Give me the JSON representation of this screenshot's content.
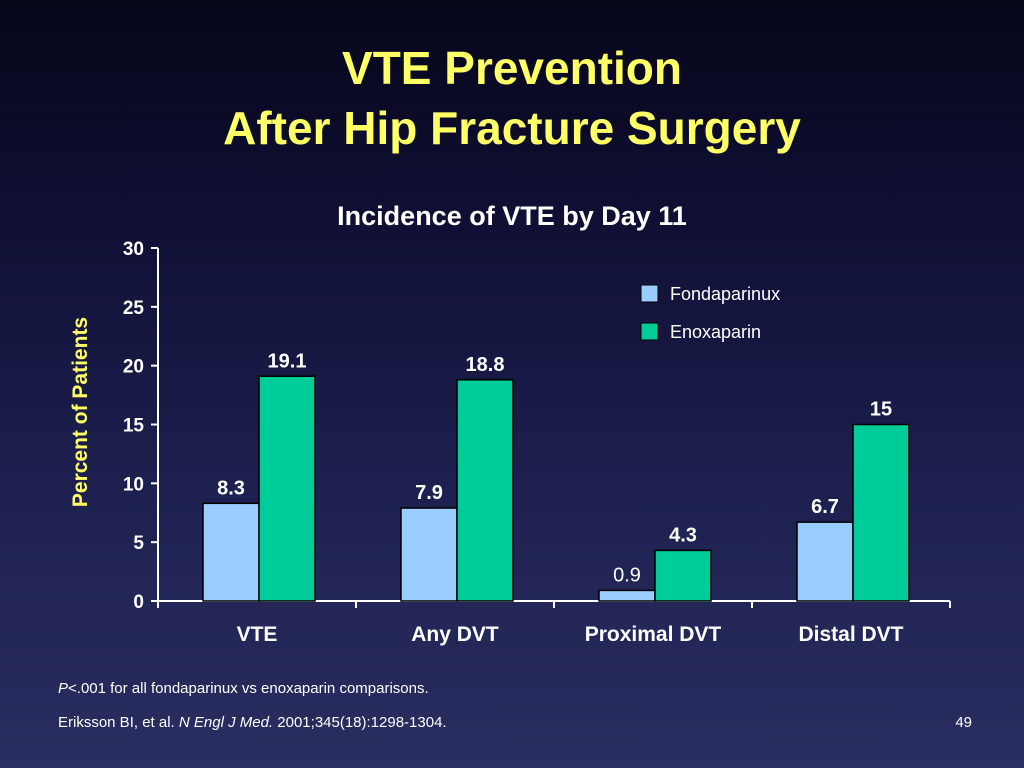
{
  "slide": {
    "title_line1": "VTE Prevention",
    "title_line2": "After Hip Fracture Surgery",
    "footnote_p": "P",
    "footnote_rest": "<.001 for all fondaparinux vs enoxaparin comparisons.",
    "citation_authors": "Eriksson BI, et al. ",
    "citation_journal": "N Engl J Med.",
    "citation_details": " 2001;345(18):1298-1304.",
    "page_number": "49"
  },
  "colors": {
    "title": "#ffff66",
    "fondaparinux": "#99ccff",
    "enoxaparin": "#00cc99",
    "axis": "#ffffff",
    "ylabel": "#ffff66"
  },
  "chart_data": {
    "type": "bar",
    "title": "Incidence of VTE by Day 11",
    "xlabel": "",
    "ylabel": "Percent of Patients",
    "ylim": [
      0,
      30
    ],
    "yticks": [
      0,
      5,
      10,
      15,
      20,
      25,
      30
    ],
    "grid": false,
    "legend_position": "top-right",
    "categories": [
      "VTE",
      "Any DVT",
      "Proximal DVT",
      "Distal DVT"
    ],
    "series": [
      {
        "name": "Fondaparinux",
        "values": [
          8.3,
          7.9,
          0.9,
          6.7
        ],
        "labels": [
          "8.3",
          "7.9",
          "0.9",
          "6.7"
        ],
        "color": "#99ccff"
      },
      {
        "name": "Enoxaparin",
        "values": [
          19.1,
          18.8,
          4.3,
          15
        ],
        "labels": [
          "19.1",
          "18.8",
          "4.3",
          "15"
        ],
        "color": "#00cc99"
      }
    ]
  }
}
